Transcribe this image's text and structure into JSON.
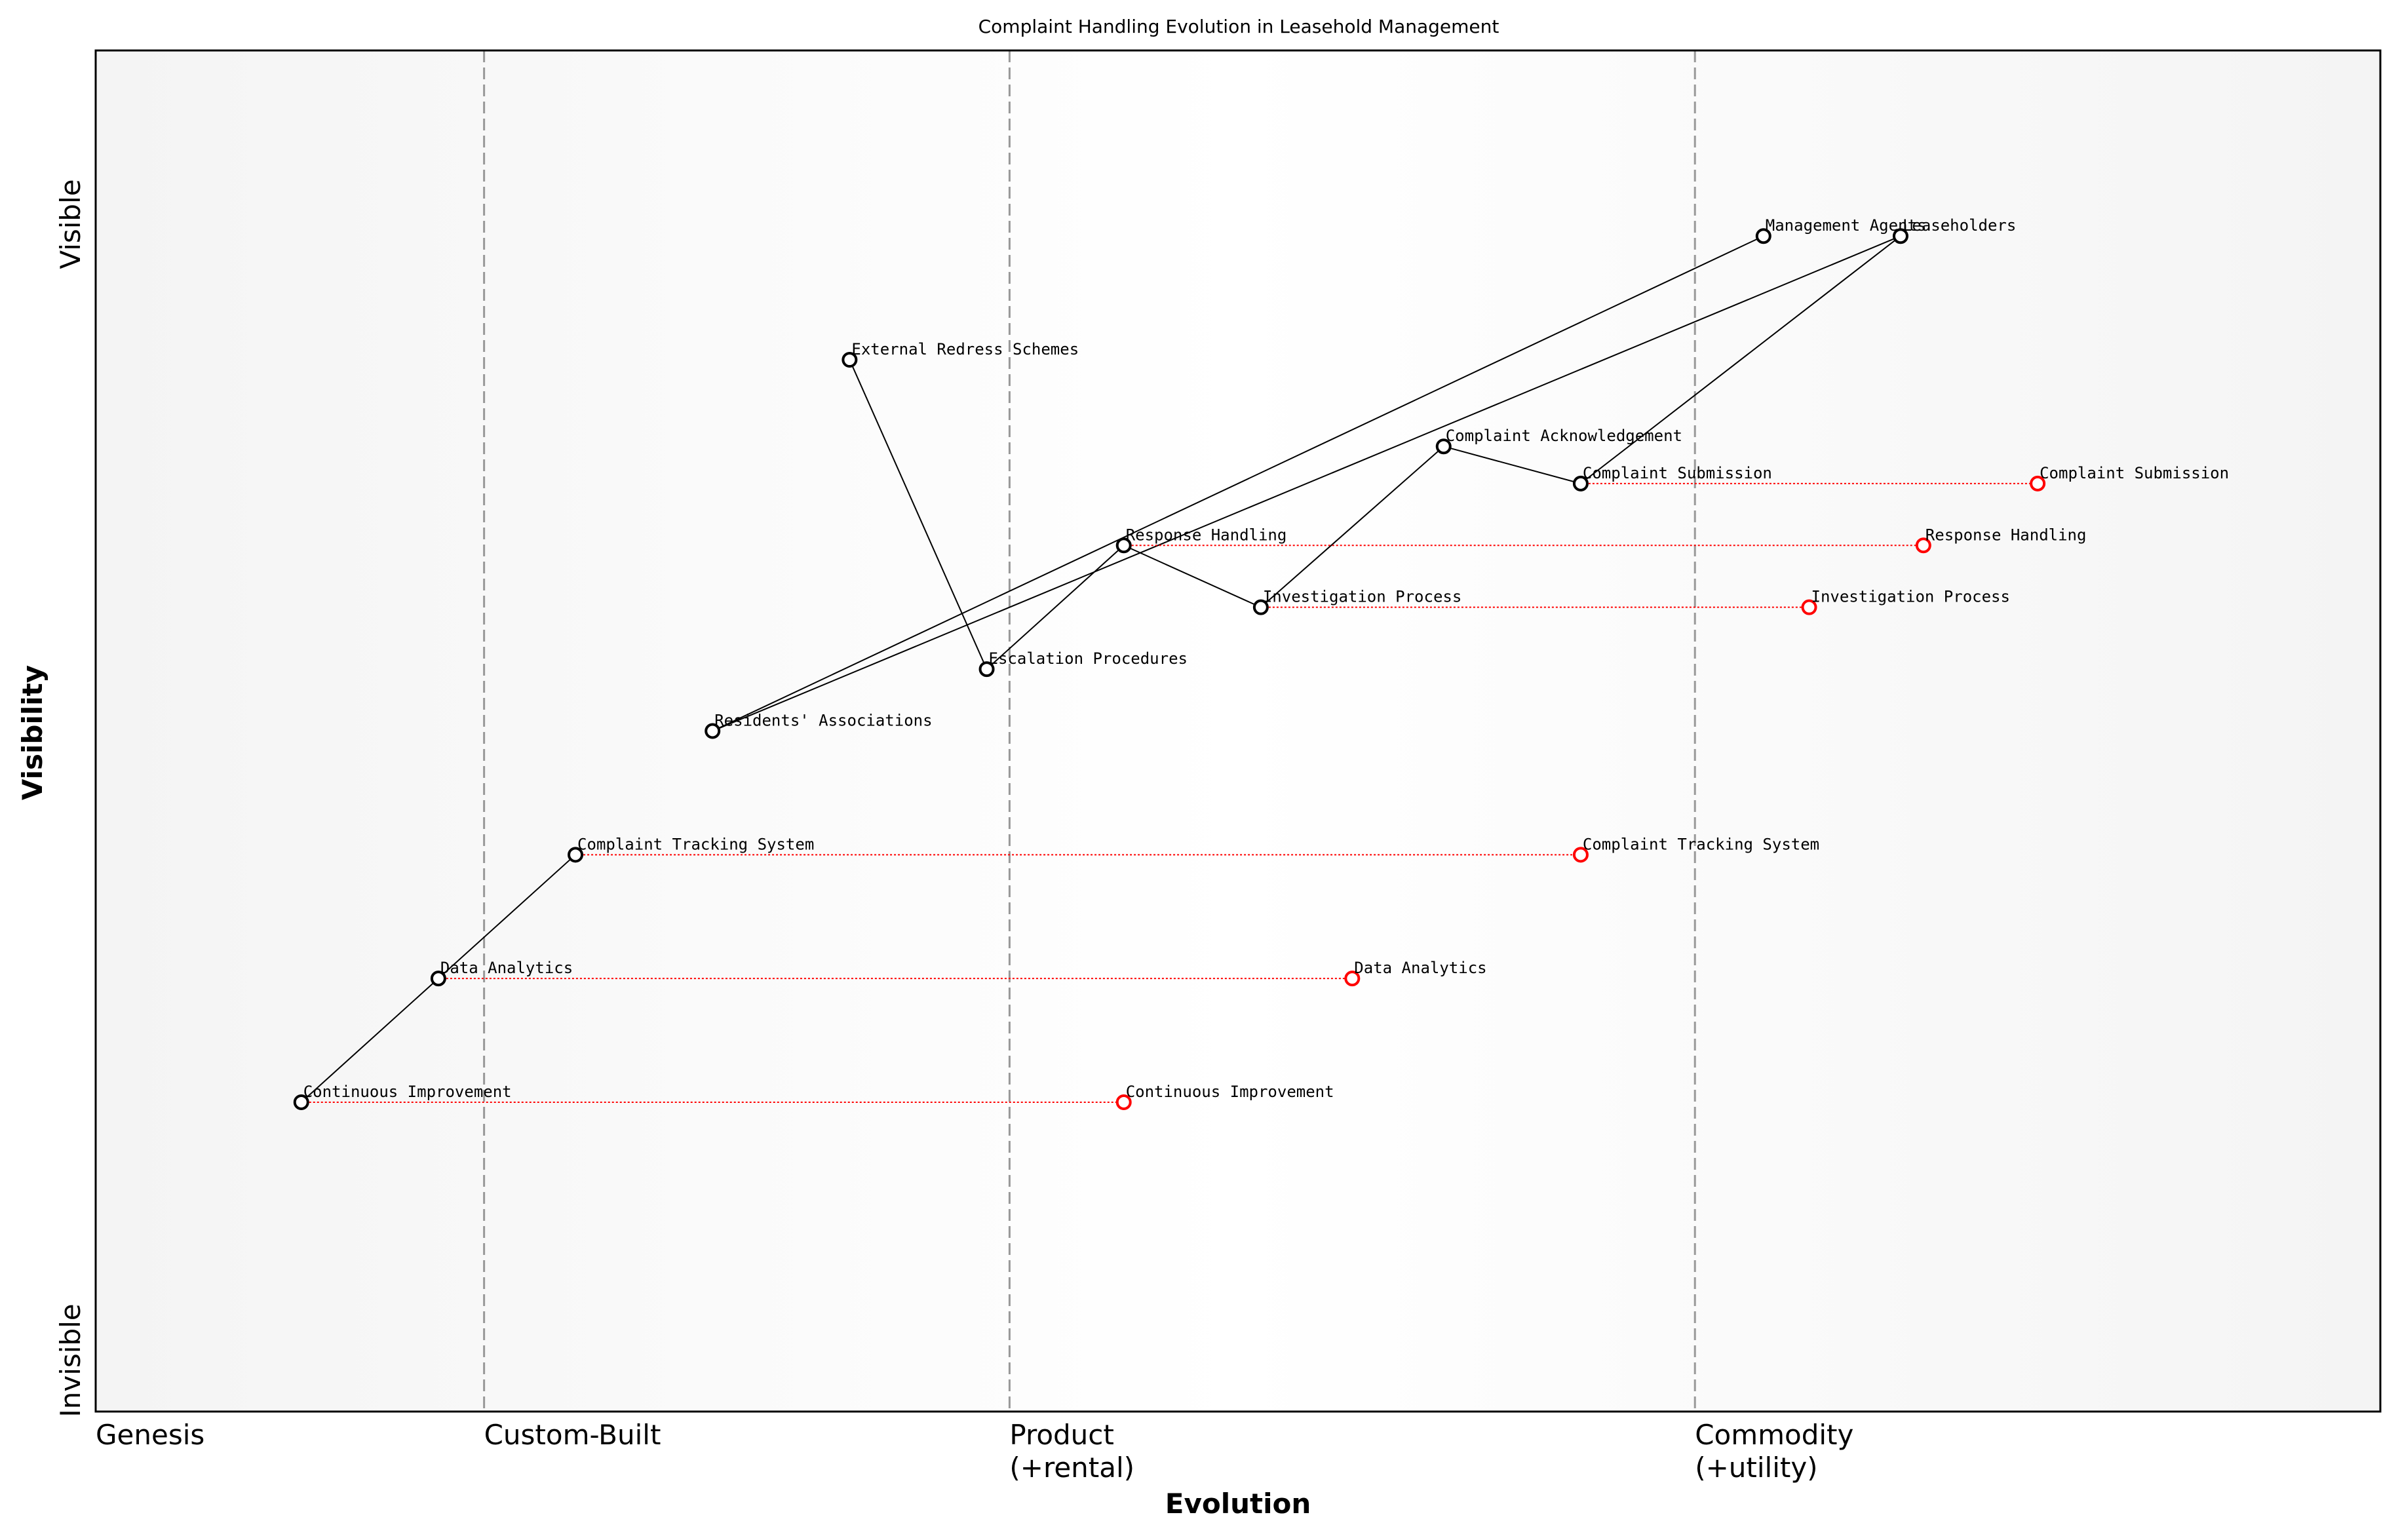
{
  "chart_data": {
    "type": "scatter",
    "title": "Complaint Handling Evolution in Leasehold Management",
    "xlabel": "Evolution",
    "ylabel": "Visibility",
    "xlim": [
      0,
      1
    ],
    "ylim": [
      0,
      1.1
    ],
    "stages": [
      {
        "x": 0.0,
        "line": 1,
        "label": "Genesis",
        "divider": false
      },
      {
        "x": 0.17,
        "line": 1,
        "label": "Custom-Built",
        "divider": true
      },
      {
        "x": 0.4,
        "line": 1,
        "label": "Product",
        "divider": true
      },
      {
        "x": 0.4,
        "line": 2,
        "label": "(+rental)",
        "divider": false
      },
      {
        "x": 0.7,
        "line": 1,
        "label": "Commodity",
        "divider": true
      },
      {
        "x": 0.7,
        "line": 2,
        "label": "(+utility)",
        "divider": false
      }
    ],
    "visibility_labels": {
      "top": "Visible",
      "bottom": "Invisible"
    },
    "components": [
      {
        "name": "Leaseholders",
        "x": 0.79,
        "y": 0.95
      },
      {
        "name": "Management Agents",
        "x": 0.73,
        "y": 0.95
      },
      {
        "name": "External Redress Schemes",
        "x": 0.33,
        "y": 0.85
      },
      {
        "name": "Complaint Acknowledgement",
        "x": 0.59,
        "y": 0.78
      },
      {
        "name": "Complaint Submission",
        "x": 0.65,
        "y": 0.75
      },
      {
        "name": "Response Handling",
        "x": 0.45,
        "y": 0.7
      },
      {
        "name": "Investigation Process",
        "x": 0.51,
        "y": 0.65
      },
      {
        "name": "Escalation Procedures",
        "x": 0.39,
        "y": 0.6
      },
      {
        "name": "Residents' Associations",
        "x": 0.27,
        "y": 0.55
      },
      {
        "name": "Complaint Tracking System",
        "x": 0.21,
        "y": 0.45
      },
      {
        "name": "Data Analytics",
        "x": 0.15,
        "y": 0.35
      },
      {
        "name": "Continuous Improvement",
        "x": 0.09,
        "y": 0.25
      }
    ],
    "links": [
      [
        "Leaseholders",
        "Complaint Submission"
      ],
      [
        "Complaint Submission",
        "Complaint Acknowledgement"
      ],
      [
        "Complaint Acknowledgement",
        "Investigation Process"
      ],
      [
        "Investigation Process",
        "Response Handling"
      ],
      [
        "Response Handling",
        "Escalation Procedures"
      ],
      [
        "Escalation Procedures",
        "External Redress Schemes"
      ],
      [
        "Management Agents",
        "Residents' Associations"
      ],
      [
        "Residents' Associations",
        "Leaseholders"
      ],
      [
        "Complaint Tracking System",
        "Data Analytics"
      ],
      [
        "Data Analytics",
        "Continuous Improvement"
      ]
    ],
    "evolutions": [
      {
        "name": "Complaint Submission",
        "from_x": 0.65,
        "to_x": 0.85,
        "y": 0.75
      },
      {
        "name": "Response Handling",
        "from_x": 0.45,
        "to_x": 0.8,
        "y": 0.7
      },
      {
        "name": "Investigation Process",
        "from_x": 0.51,
        "to_x": 0.75,
        "y": 0.65
      },
      {
        "name": "Complaint Tracking System",
        "from_x": 0.21,
        "to_x": 0.65,
        "y": 0.45
      },
      {
        "name": "Data Analytics",
        "from_x": 0.15,
        "to_x": 0.55,
        "y": 0.35
      },
      {
        "name": "Continuous Improvement",
        "from_x": 0.09,
        "to_x": 0.45,
        "y": 0.25
      }
    ],
    "colors": {
      "component": "#000000",
      "evolved": "#ff0000",
      "evolution_line": "#ff0000",
      "divider": "#999999",
      "background_edge": "#f4f4f4",
      "background_mid": "#ffffff"
    }
  }
}
